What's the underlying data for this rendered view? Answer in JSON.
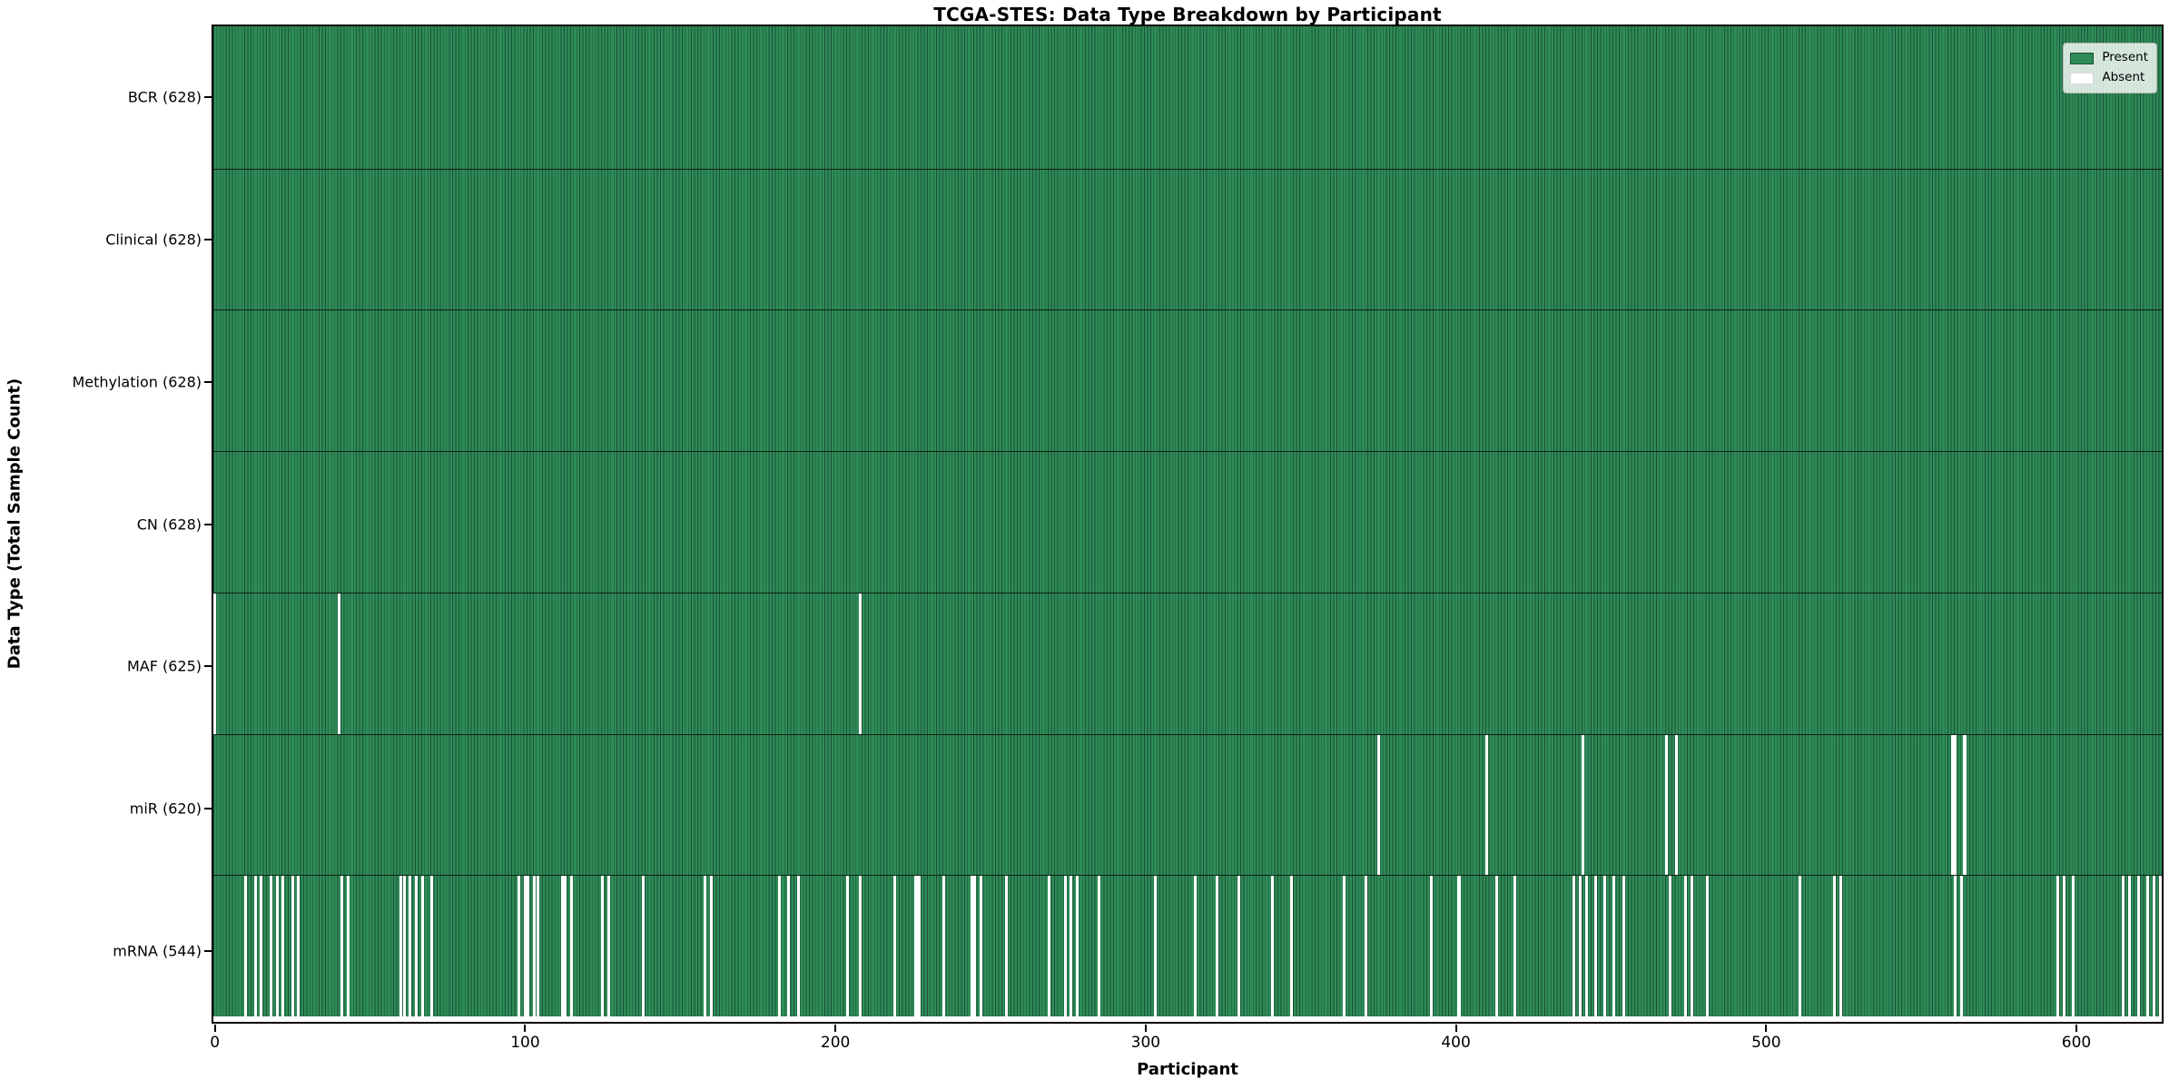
{
  "title": "TCGA-STES: Data Type Breakdown by Participant",
  "colors": {
    "present_fill": "#2e8b57",
    "bar_edge": "#1b5134",
    "absent_fill": "#ffffff",
    "separator": "#0d1f14",
    "spine": "#000000"
  },
  "legend": {
    "entries": [
      {
        "label": "Present",
        "color": "#2e8b57"
      },
      {
        "label": "Absent",
        "color": "#ffffff"
      }
    ],
    "position": "upper right"
  },
  "chart_data": {
    "type": "heatmap",
    "title": "TCGA-STES: Data Type Breakdown by Participant",
    "xlabel": "Participant",
    "ylabel": "Data Type (Total Sample Count)",
    "n_participants": 628,
    "x_ticks": [
      0,
      100,
      200,
      300,
      400,
      500,
      600
    ],
    "xlim": [
      0,
      628
    ],
    "grid": false,
    "legend_entries": [
      "Present",
      "Absent"
    ],
    "rows": [
      {
        "label": "BCR (628)",
        "name": "BCR",
        "present_count": 628,
        "absent_participants": []
      },
      {
        "label": "Clinical (628)",
        "name": "Clinical",
        "present_count": 628,
        "absent_participants": []
      },
      {
        "label": "Methylation (628)",
        "name": "Methylation",
        "present_count": 628,
        "absent_participants": []
      },
      {
        "label": "CN (628)",
        "name": "CN",
        "present_count": 628,
        "absent_participants": []
      },
      {
        "label": "MAF (625)",
        "name": "MAF",
        "present_count": 625,
        "absent_participants": [
          0,
          40,
          208
        ]
      },
      {
        "label": "miR (620)",
        "name": "miR",
        "present_count": 620,
        "absent_participants": [
          375,
          410,
          441,
          468,
          471,
          560,
          561,
          564
        ]
      },
      {
        "label": "mRNA (544)",
        "name": "mRNA",
        "present_count": 544,
        "absent_participants": [
          10,
          13,
          15,
          18,
          20,
          22,
          25,
          27,
          41,
          43,
          60,
          61,
          63,
          65,
          67,
          70,
          98,
          100,
          101,
          103,
          104,
          112,
          113,
          115,
          125,
          127,
          138,
          158,
          160,
          182,
          185,
          188,
          204,
          208,
          219,
          226,
          227,
          235,
          244,
          245,
          247,
          255,
          269,
          274,
          276,
          278,
          285,
          303,
          316,
          323,
          330,
          341,
          347,
          364,
          371,
          392,
          401,
          413,
          419,
          438,
          440,
          442,
          445,
          448,
          451,
          454,
          469,
          474,
          476,
          481,
          511,
          522,
          524,
          561,
          563,
          594,
          596,
          599,
          615,
          617,
          620,
          623,
          625,
          627
        ]
      }
    ]
  }
}
